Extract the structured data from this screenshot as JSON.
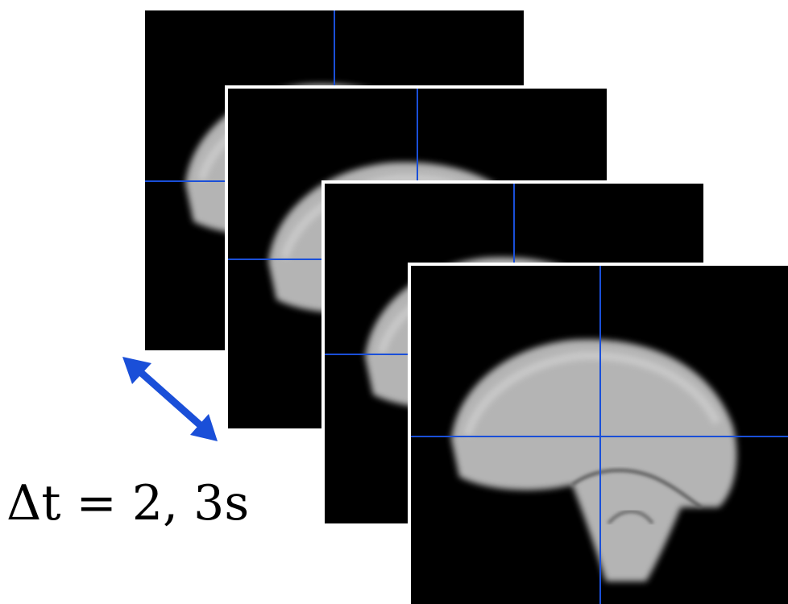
{
  "annotation": {
    "text": "Δt = 2, 3s"
  }
}
